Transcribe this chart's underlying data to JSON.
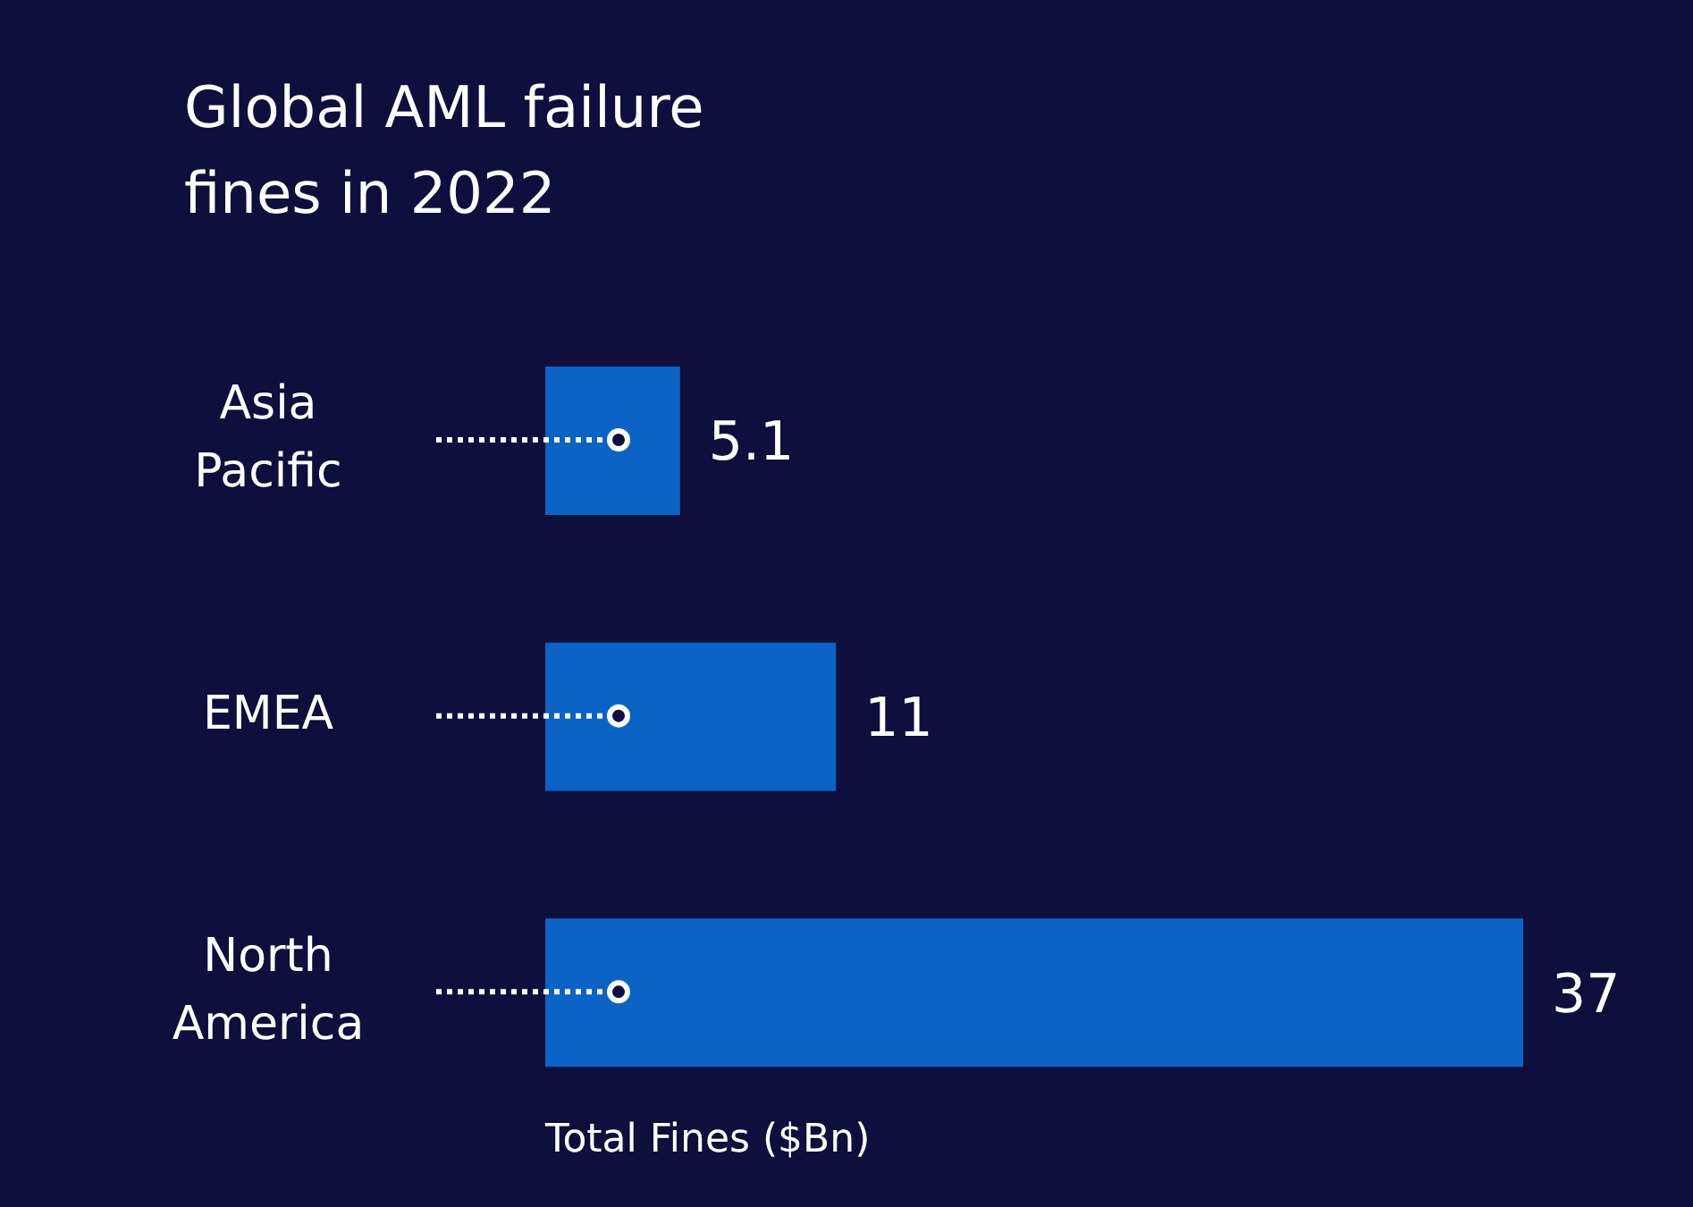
{
  "chart_data": {
    "type": "bar",
    "orientation": "horizontal",
    "title": "Global AML failure fines in 2022",
    "xlabel": "Total Fines ($Bn)",
    "categories": [
      "Asia Pacific",
      "EMEA",
      "North America"
    ],
    "values": [
      5.1,
      11,
      37
    ],
    "color": "#0b63c5",
    "data_labels": true
  }
}
